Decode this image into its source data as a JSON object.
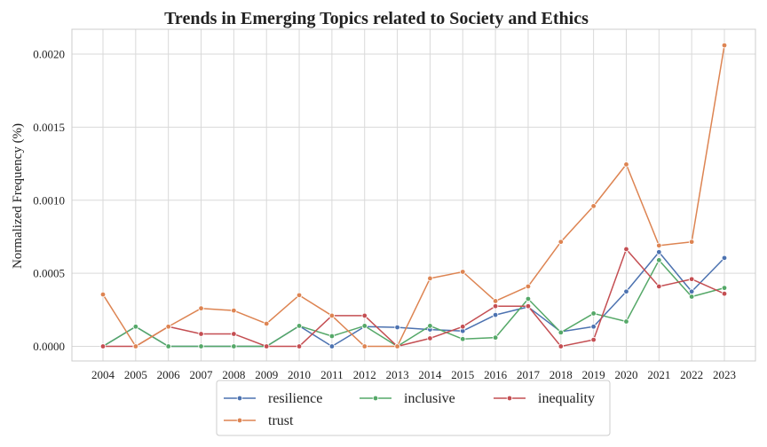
{
  "chart_data": {
    "type": "line",
    "title": "Trends in Emerging Topics related to Society and Ethics",
    "xlabel": "",
    "ylabel": "Normalized Frequency (%)",
    "x": [
      "2004",
      "2005",
      "2006",
      "2007",
      "2008",
      "2009",
      "2010",
      "2011",
      "2012",
      "2013",
      "2014",
      "2015",
      "2016",
      "2017",
      "2018",
      "2019",
      "2020",
      "2021",
      "2022",
      "2023"
    ],
    "ylim": [
      -0.0001,
      0.00217
    ],
    "yticks": [
      "0.0000",
      "0.0005",
      "0.0010",
      "0.0015",
      "0.0020"
    ],
    "ytick_values": [
      0,
      0.0005,
      0.001,
      0.0015,
      0.002
    ],
    "grid": true,
    "legend_position": "bottom-center",
    "series": [
      {
        "name": "resilience",
        "color": "#4c72b0",
        "values": [
          0,
          0.000135,
          0,
          0,
          0,
          0,
          0.00014,
          0,
          0.000135,
          0.00013,
          0.000115,
          0.000105,
          0.000215,
          0.00027,
          0.0001,
          0.000135,
          0.000375,
          0.000645,
          0.000375,
          0.000605
        ]
      },
      {
        "name": "inclusive",
        "color": "#55a868",
        "values": [
          0,
          0.000135,
          0,
          0,
          0,
          0,
          0.00014,
          7e-05,
          0.00014,
          0,
          0.00014,
          5e-05,
          6e-05,
          0.000325,
          9.5e-05,
          0.000225,
          0.00017,
          0.00059,
          0.00034,
          0.0004
        ]
      },
      {
        "name": "inequality",
        "color": "#c44e52",
        "values": [
          0,
          0,
          0.000135,
          8.5e-05,
          8.5e-05,
          0,
          0,
          0.00021,
          0.00021,
          0,
          5.5e-05,
          0.000135,
          0.000275,
          0.000275,
          0,
          4.5e-05,
          0.000665,
          0.00041,
          0.00046,
          0.00036
        ]
      },
      {
        "name": "trust",
        "color": "#dd8452",
        "values": [
          0.000355,
          0,
          0.000135,
          0.00026,
          0.000245,
          0.000155,
          0.00035,
          0.00021,
          0,
          0,
          0.000465,
          0.00051,
          0.00031,
          0.00041,
          0.000715,
          0.00096,
          0.001245,
          0.00069,
          0.000715,
          0.00206
        ]
      }
    ]
  }
}
